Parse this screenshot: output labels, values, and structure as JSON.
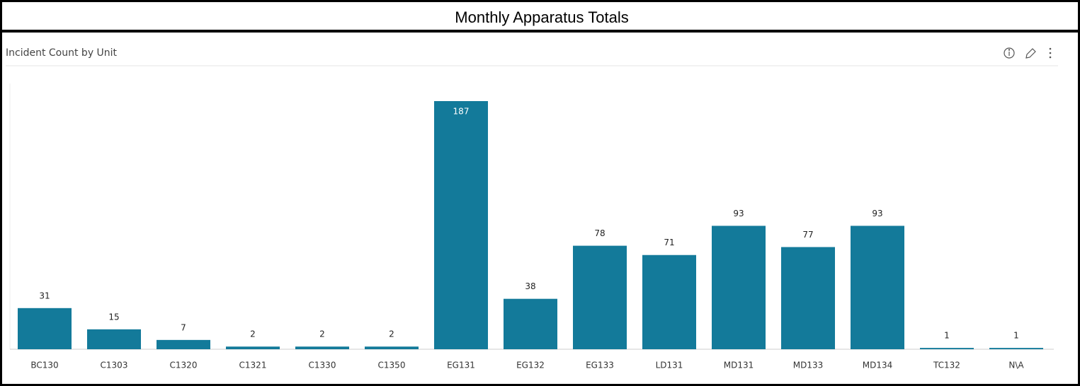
{
  "chart_data": {
    "type": "bar",
    "title": "Monthly Apparatus Totals",
    "subtitle": "Incident Count by Unit",
    "categories": [
      "BC130",
      "C1303",
      "C1320",
      "C1321",
      "C1330",
      "C1350",
      "EG131",
      "EG132",
      "EG133",
      "LD131",
      "MD131",
      "MD133",
      "MD134",
      "TC132",
      "N\\A"
    ],
    "values": [
      31,
      15,
      7,
      2,
      2,
      2,
      187,
      38,
      78,
      71,
      93,
      77,
      93,
      1,
      1
    ],
    "color": "#137a9a"
  }
}
